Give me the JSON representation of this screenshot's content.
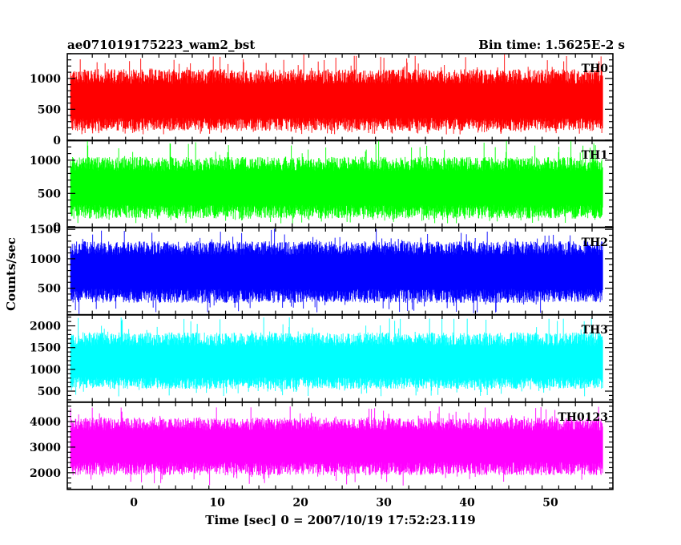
{
  "chart_data": {
    "type": "line",
    "title_left": "ae071019175223_wam2_bst",
    "title_right": "Bin time: 1.5625E-2 s",
    "xlabel": "Time [sec] 0 = 2007/10/19 17:52:23.119",
    "ylabel": "Counts/sec",
    "xlim": [
      -8,
      57.5
    ],
    "x_ticks": [
      0,
      10,
      20,
      30,
      40,
      50
    ],
    "x_data_range": [
      -7.6,
      56.3
    ],
    "bin_time": 0.015625,
    "grid": false,
    "panels": [
      {
        "name": "TH0",
        "color": "#ff0000",
        "ylim": [
          -10,
          1400
        ],
        "y_ticks": [
          0,
          500,
          1000
        ],
        "baseline": 620,
        "upper_typical": 1150,
        "lower_typical": 150,
        "peak": 1400,
        "floor": 90
      },
      {
        "name": "TH1",
        "color": "#00ff00",
        "ylim": [
          -10,
          1300
        ],
        "y_ticks": [
          0,
          500,
          1000
        ],
        "baseline": 580,
        "upper_typical": 1050,
        "lower_typical": 120,
        "peak": 1300,
        "floor": 50
      },
      {
        "name": "TH2",
        "color": "#0000ff",
        "ylim": [
          50,
          1530
        ],
        "y_ticks": [
          500,
          1000,
          1500
        ],
        "baseline": 780,
        "upper_typical": 1300,
        "lower_typical": 250,
        "peak": 1520,
        "floor": 60
      },
      {
        "name": "TH3",
        "color": "#00ffff",
        "ylim": [
          250,
          2250
        ],
        "y_ticks": [
          500,
          1000,
          1500,
          2000
        ],
        "baseline": 1150,
        "upper_typical": 1850,
        "lower_typical": 550,
        "peak": 2200,
        "floor": 380
      },
      {
        "name": "TH0123",
        "color": "#ff00ff",
        "ylim": [
          1350,
          4750
        ],
        "y_ticks": [
          2000,
          3000,
          4000
        ],
        "baseline": 3050,
        "upper_typical": 4150,
        "lower_typical": 1900,
        "peak": 4600,
        "floor": 1500
      }
    ]
  }
}
